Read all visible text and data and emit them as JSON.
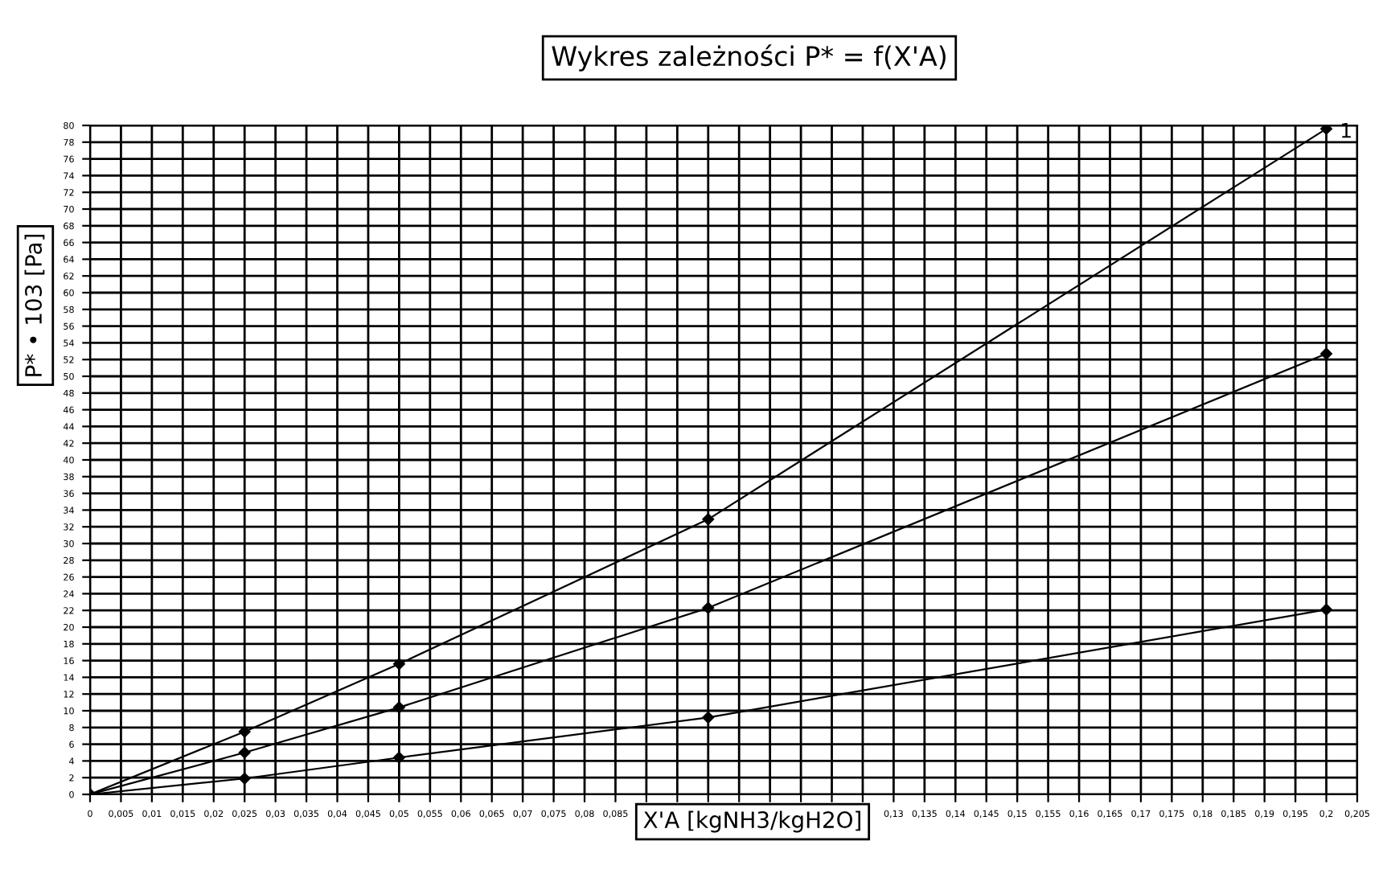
{
  "chart_data": {
    "type": "line",
    "title": "Wykres zależności P* = f(X'A)",
    "xlabel": "X'A [kgNH3/kgH2O]",
    "ylabel": "P* • 103 [Pa]",
    "x": [
      0,
      0.025,
      0.05,
      0.1,
      0.2
    ],
    "series": [
      {
        "color": "#000000",
        "values": [
          0,
          7.5,
          15.6,
          32.9,
          79.6
        ]
      },
      {
        "color": "#000000",
        "values": [
          0,
          5.0,
          10.4,
          22.3,
          52.7
        ]
      },
      {
        "color": "#000000",
        "values": [
          0,
          1.9,
          4.4,
          9.2,
          22.1
        ]
      }
    ],
    "annotations": [
      {
        "text": "1",
        "x": 0.2,
        "y": 79.6
      }
    ],
    "marker": "diamond",
    "line_style": "solid",
    "grid": true,
    "legend": false,
    "xlim": [
      0,
      0.205
    ],
    "xticks": [
      {
        "value": 0,
        "label": "0"
      },
      {
        "value": 0.005,
        "label": "0,005"
      },
      {
        "value": 0.01,
        "label": "0,01"
      },
      {
        "value": 0.015,
        "label": "0,015"
      },
      {
        "value": 0.02,
        "label": "0,02"
      },
      {
        "value": 0.025,
        "label": "0,025"
      },
      {
        "value": 0.03,
        "label": "0,03"
      },
      {
        "value": 0.035,
        "label": "0,035"
      },
      {
        "value": 0.04,
        "label": "0,04"
      },
      {
        "value": 0.045,
        "label": "0,045"
      },
      {
        "value": 0.05,
        "label": "0,05"
      },
      {
        "value": 0.055,
        "label": "0,055"
      },
      {
        "value": 0.06,
        "label": "0,06"
      },
      {
        "value": 0.065,
        "label": "0,065"
      },
      {
        "value": 0.07,
        "label": "0,07"
      },
      {
        "value": 0.075,
        "label": "0,075"
      },
      {
        "value": 0.08,
        "label": "0,08"
      },
      {
        "value": 0.085,
        "label": "0,085"
      },
      {
        "value": 0.09,
        "label": null
      },
      {
        "value": 0.095,
        "label": null
      },
      {
        "value": 0.1,
        "label": null
      },
      {
        "value": 0.105,
        "label": null
      },
      {
        "value": 0.11,
        "label": null
      },
      {
        "value": 0.115,
        "label": null
      },
      {
        "value": 0.12,
        "label": null
      },
      {
        "value": 0.125,
        "label": null
      },
      {
        "value": 0.13,
        "label": "0,13"
      },
      {
        "value": 0.135,
        "label": "0,135"
      },
      {
        "value": 0.14,
        "label": "0,14"
      },
      {
        "value": 0.145,
        "label": "0,145"
      },
      {
        "value": 0.15,
        "label": "0,15"
      },
      {
        "value": 0.155,
        "label": "0,155"
      },
      {
        "value": 0.16,
        "label": "0,16"
      },
      {
        "value": 0.165,
        "label": "0,165"
      },
      {
        "value": 0.17,
        "label": "0,17"
      },
      {
        "value": 0.175,
        "label": "0,175"
      },
      {
        "value": 0.18,
        "label": "0,18"
      },
      {
        "value": 0.185,
        "label": "0,185"
      },
      {
        "value": 0.19,
        "label": "0,19"
      },
      {
        "value": 0.195,
        "label": "0,195"
      },
      {
        "value": 0.2,
        "label": "0,2"
      },
      {
        "value": 0.205,
        "label": "0,205"
      }
    ],
    "ylim": [
      0,
      80
    ],
    "yticks": [
      0,
      2,
      4,
      6,
      8,
      10,
      12,
      14,
      16,
      18,
      20,
      22,
      24,
      26,
      28,
      30,
      32,
      34,
      36,
      38,
      40,
      42,
      44,
      46,
      48,
      50,
      52,
      54,
      56,
      58,
      60,
      62,
      64,
      66,
      68,
      70,
      72,
      74,
      76,
      78,
      80
    ]
  }
}
